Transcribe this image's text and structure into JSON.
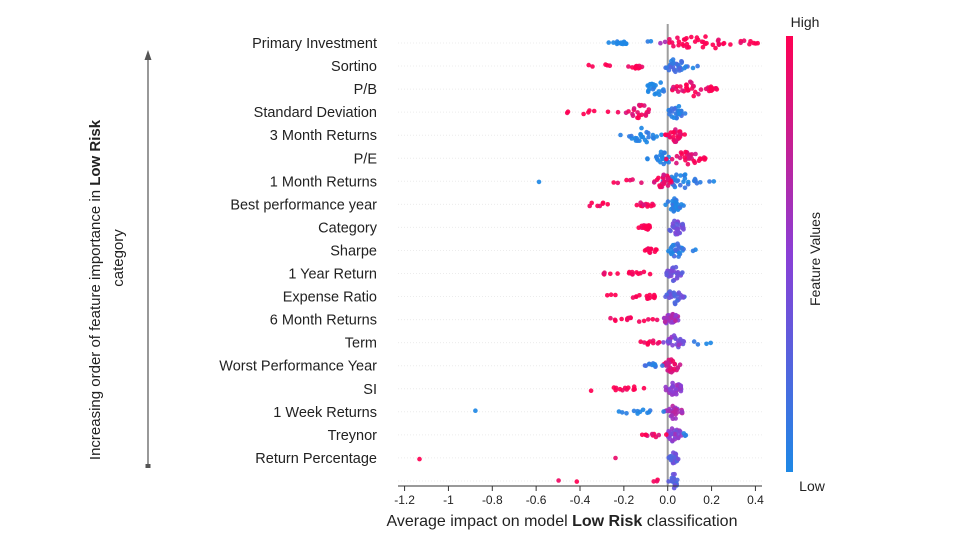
{
  "chart_data": {
    "type": "scatter",
    "subtype": "shap-beeswarm",
    "xlabel_prefix": "Average impact on model ",
    "xlabel_bold": "Low Risk",
    "xlabel_suffix": " classification",
    "side_label_line1_prefix": "Increasing order of feature importance in ",
    "side_label_line1_bold": "Low Risk",
    "side_label_line2": "category",
    "xlim": [
      -1.23,
      0.43
    ],
    "xticks": [
      -1.2,
      -1,
      -0.8,
      -0.6,
      -0.4,
      -0.2,
      0.0,
      0.2,
      0.4
    ],
    "xtick_labels": [
      "-1.2",
      "-1",
      "-0.8",
      "-0.6",
      "-0.4",
      "-0.2",
      "0.0",
      "0.2",
      "0.4"
    ],
    "colorbar": {
      "title": "Feature Values",
      "high_label": "High",
      "low_label": "Low",
      "high_color": "#ff0052",
      "low_color": "#1e88e5"
    },
    "features": [
      {
        "name": "Primary Investment",
        "clusters": [
          [
            -0.22,
            0.03,
            0.15,
            0.0
          ],
          [
            0.12,
            0.1,
            0.35,
            1.0
          ],
          [
            0.35,
            0.03,
            8,
            1.0
          ],
          [
            -0.08,
            0.01,
            2,
            0.0
          ],
          [
            -0.01,
            0.01,
            2,
            0.7
          ]
        ]
      },
      {
        "name": "Sortino",
        "clusters": [
          [
            0.04,
            0.03,
            0.3,
            0.15
          ],
          [
            -0.14,
            0.02,
            12,
            0.95
          ],
          [
            -0.32,
            0.04,
            5,
            1.0
          ],
          [
            0.12,
            0.01,
            2,
            0.0
          ]
        ]
      },
      {
        "name": "P/B",
        "clusters": [
          [
            -0.05,
            0.03,
            0.22,
            0.0
          ],
          [
            0.1,
            0.05,
            0.28,
            0.95
          ],
          [
            0.2,
            0.02,
            8,
            1.0
          ]
        ]
      },
      {
        "name": "Standard Deviation",
        "clusters": [
          [
            0.04,
            0.02,
            0.25,
            0.1
          ],
          [
            -0.12,
            0.04,
            20,
            0.95
          ],
          [
            -0.35,
            0.05,
            6,
            1.0
          ],
          [
            -0.45,
            0.01,
            2,
            1.0
          ]
        ]
      },
      {
        "name": "3 Month Returns",
        "clusters": [
          [
            -0.11,
            0.04,
            0.25,
            0.0
          ],
          [
            0.04,
            0.02,
            0.3,
            0.95
          ]
        ]
      },
      {
        "name": "P/E",
        "clusters": [
          [
            -0.02,
            0.02,
            0.22,
            0.0
          ],
          [
            0.08,
            0.04,
            0.26,
            0.9
          ],
          [
            0.16,
            0.01,
            4,
            1.0
          ],
          [
            -0.1,
            0.01,
            2,
            0.0
          ]
        ]
      },
      {
        "name": "1 Month Returns",
        "clusters": [
          [
            0.06,
            0.04,
            0.3,
            0.05
          ],
          [
            -0.02,
            0.02,
            0.25,
            0.9
          ],
          [
            -0.18,
            0.05,
            6,
            1.0
          ],
          [
            -0.6,
            0.01,
            1,
            0.0
          ],
          [
            0.17,
            0.02,
            3,
            0.0
          ]
        ]
      },
      {
        "name": "Best performance year",
        "clusters": [
          [
            0.03,
            0.02,
            0.28,
            0.05
          ],
          [
            -0.1,
            0.03,
            12,
            0.95
          ],
          [
            -0.35,
            0.05,
            7,
            1.0
          ]
        ]
      },
      {
        "name": "Category",
        "clusters": [
          [
            0.04,
            0.02,
            0.3,
            0.4
          ],
          [
            -0.1,
            0.02,
            14,
            1.0
          ]
        ]
      },
      {
        "name": "Sharpe",
        "clusters": [
          [
            0.04,
            0.02,
            0.25,
            0.1
          ],
          [
            -0.08,
            0.02,
            12,
            0.95
          ],
          [
            0.12,
            0.01,
            2,
            0.0
          ]
        ]
      },
      {
        "name": "1 Year Return",
        "clusters": [
          [
            0.03,
            0.02,
            0.3,
            0.35
          ],
          [
            -0.15,
            0.05,
            12,
            1.0
          ],
          [
            -0.3,
            0.02,
            3,
            1.0
          ]
        ]
      },
      {
        "name": "Expense Ratio",
        "clusters": [
          [
            0.03,
            0.02,
            0.28,
            0.3
          ],
          [
            -0.1,
            0.04,
            14,
            1.0
          ],
          [
            -0.25,
            0.02,
            3,
            1.0
          ]
        ]
      },
      {
        "name": "6 Month Returns",
        "clusters": [
          [
            0.02,
            0.02,
            0.28,
            0.6
          ],
          [
            -0.14,
            0.04,
            12,
            1.0
          ],
          [
            -0.25,
            0.01,
            2,
            1.0
          ]
        ]
      },
      {
        "name": "Term",
        "clusters": [
          [
            0.03,
            0.02,
            0.28,
            0.45
          ],
          [
            -0.08,
            0.03,
            10,
            1.0
          ],
          [
            0.15,
            0.03,
            4,
            0.0
          ]
        ]
      },
      {
        "name": "Worst Performance Year",
        "clusters": [
          [
            0.02,
            0.02,
            0.3,
            0.85
          ],
          [
            -0.07,
            0.02,
            12,
            0.1
          ]
        ]
      },
      {
        "name": "SI",
        "clusters": [
          [
            0.03,
            0.02,
            0.3,
            0.55
          ],
          [
            -0.18,
            0.05,
            12,
            1.0
          ],
          [
            -0.35,
            0.01,
            1,
            1.0
          ]
        ]
      },
      {
        "name": "1 Week Returns",
        "clusters": [
          [
            0.03,
            0.02,
            0.28,
            0.6
          ],
          [
            -0.14,
            0.05,
            12,
            0.0
          ],
          [
            -0.88,
            0.01,
            1,
            0.0
          ]
        ]
      },
      {
        "name": "Treynor",
        "clusters": [
          [
            0.03,
            0.02,
            0.28,
            0.5
          ],
          [
            -0.06,
            0.03,
            10,
            0.95
          ],
          [
            0.08,
            0.02,
            3,
            0.0
          ]
        ]
      },
      {
        "name": "Return Percentage",
        "clusters": [
          [
            0.03,
            0.01,
            0.25,
            0.3
          ],
          [
            -0.24,
            0.01,
            1,
            1.0
          ],
          [
            -1.13,
            0.01,
            1,
            1.0
          ]
        ]
      },
      {
        "name": "",
        "clusters": [
          [
            0.03,
            0.01,
            0.22,
            0.25
          ],
          [
            -0.05,
            0.01,
            3,
            1.0
          ],
          [
            -0.4,
            0.01,
            1,
            1.0
          ],
          [
            -0.48,
            0.01,
            1,
            1.0
          ]
        ]
      }
    ]
  }
}
